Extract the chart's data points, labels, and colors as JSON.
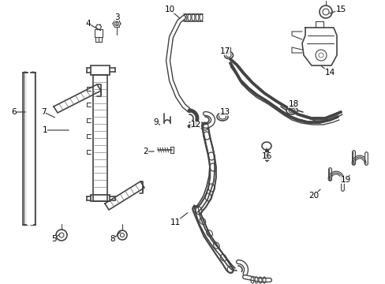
{
  "background_color": "#ffffff",
  "line_color": "#444444",
  "fig_width": 4.89,
  "fig_height": 3.6,
  "dpi": 100,
  "labels": [
    [
      57,
      195,
      90,
      195,
      "1"
    ],
    [
      185,
      168,
      198,
      168,
      "2"
    ],
    [
      148,
      338,
      148,
      325,
      "3"
    ],
    [
      112,
      330,
      130,
      320,
      "4"
    ],
    [
      68,
      57,
      78,
      65,
      "5"
    ],
    [
      18,
      218,
      35,
      218,
      "6"
    ],
    [
      55,
      218,
      72,
      210,
      "7"
    ],
    [
      143,
      57,
      155,
      68,
      "8"
    ],
    [
      198,
      205,
      205,
      200,
      "9"
    ],
    [
      215,
      348,
      230,
      335,
      "10"
    ],
    [
      222,
      78,
      240,
      92,
      "11"
    ],
    [
      248,
      202,
      258,
      195,
      "12"
    ],
    [
      285,
      218,
      278,
      212,
      "13"
    ],
    [
      418,
      268,
      405,
      278,
      "14"
    ],
    [
      432,
      348,
      415,
      342,
      "15"
    ],
    [
      338,
      162,
      338,
      175,
      "16"
    ],
    [
      285,
      295,
      292,
      290,
      "17"
    ],
    [
      372,
      228,
      368,
      222,
      "18"
    ],
    [
      438,
      132,
      445,
      140,
      "19"
    ],
    [
      398,
      112,
      408,
      122,
      "20"
    ]
  ]
}
